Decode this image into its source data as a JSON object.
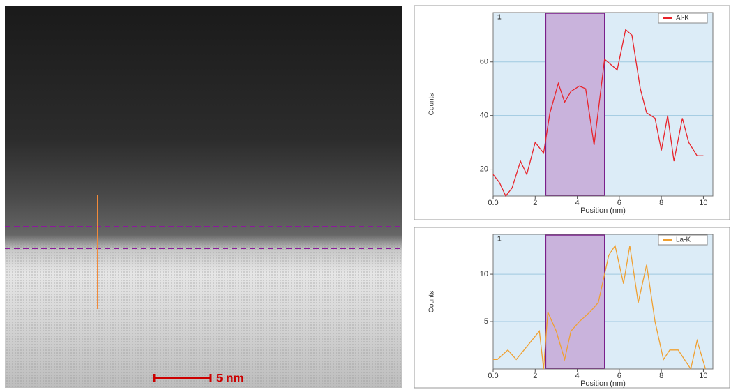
{
  "image": {
    "scale_bar_label": "5 nm"
  },
  "chart_data": [
    {
      "type": "line",
      "panel_label": "1",
      "x_label": "Position (nm)",
      "y_label": "Counts",
      "xlim": [
        0,
        10.45
      ],
      "ylim": [
        10,
        78.4
      ],
      "xticks": [
        {
          "value": 0,
          "label": "0.0"
        },
        2,
        4,
        6,
        8,
        10
      ],
      "yticks": [
        20,
        40,
        60
      ],
      "grid": true,
      "highlight_range": [
        2.5,
        5.3
      ],
      "highlight_color": "#c9b3dc",
      "x": [
        0,
        0.3,
        0.6,
        0.9,
        1.3,
        1.6,
        2.0,
        2.4,
        2.7,
        3.1,
        3.4,
        3.7,
        4.1,
        4.4,
        4.8,
        5.3,
        5.9,
        6.3,
        6.6,
        7.0,
        7.3,
        7.7,
        8.0,
        8.3,
        8.6,
        9.0,
        9.3,
        9.7,
        10.0
      ],
      "series": [
        {
          "name": "Al-K",
          "color": "#e8232a",
          "values": [
            18,
            15,
            10,
            13,
            23,
            18,
            30,
            26,
            41,
            52,
            45,
            49,
            51,
            50,
            29,
            61,
            57,
            72,
            70,
            50,
            41,
            39,
            27,
            40,
            23,
            39,
            30,
            25,
            25
          ]
        }
      ]
    },
    {
      "type": "line",
      "panel_label": "1",
      "x_label": "Position (nm)",
      "y_label": "Counts",
      "xlim": [
        0,
        10.45
      ],
      "ylim": [
        0,
        14.2
      ],
      "xticks": [
        {
          "value": 0,
          "label": "0.0"
        },
        2,
        4,
        6,
        8,
        10
      ],
      "yticks": [
        5,
        10
      ],
      "grid": true,
      "highlight_range": [
        2.5,
        5.3
      ],
      "highlight_color": "#c9b3dc",
      "x": [
        0,
        0.2,
        0.7,
        1.1,
        2.2,
        2.4,
        2.6,
        3.0,
        3.4,
        3.7,
        4.1,
        4.6,
        5.0,
        5.5,
        5.8,
        6.2,
        6.5,
        6.9,
        7.3,
        7.7,
        8.1,
        8.4,
        8.8,
        9.4,
        9.7,
        10.1
      ],
      "series": [
        {
          "name": "La-K",
          "color": "#f0a030",
          "values": [
            1,
            1,
            2,
            1,
            4,
            0,
            6,
            4,
            1,
            4,
            5,
            6,
            7,
            12,
            13,
            9,
            13,
            7,
            11,
            5,
            1,
            2,
            2,
            0,
            3,
            0
          ]
        }
      ]
    }
  ]
}
